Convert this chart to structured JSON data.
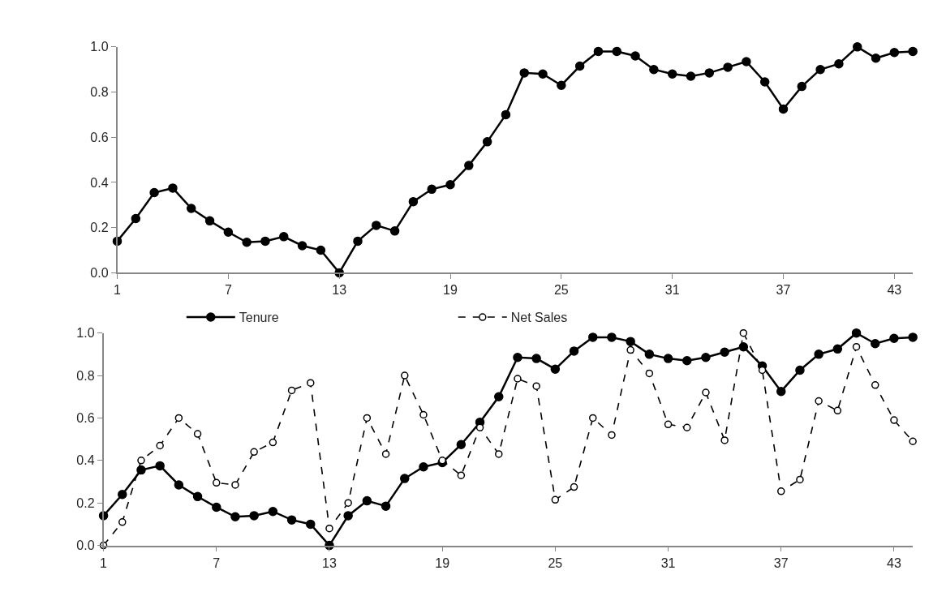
{
  "chart_data": [
    {
      "type": "line",
      "x": [
        1,
        2,
        3,
        4,
        5,
        6,
        7,
        8,
        9,
        10,
        11,
        12,
        13,
        14,
        15,
        16,
        17,
        18,
        19,
        20,
        21,
        22,
        23,
        24,
        25,
        26,
        27,
        28,
        29,
        30,
        31,
        32,
        33,
        34,
        35,
        36,
        37,
        38,
        39,
        40,
        41,
        42,
        43,
        44
      ],
      "xlim": [
        1,
        44
      ],
      "xticks": [
        1,
        7,
        13,
        19,
        25,
        31,
        37,
        43
      ],
      "ylim": [
        0,
        1
      ],
      "yticks": [
        {
          "value": 0,
          "label": "0.0"
        },
        {
          "value": 0.2,
          "label": "0.2"
        },
        {
          "value": 0.4,
          "label": "0.4"
        },
        {
          "value": 0.6,
          "label": "0.6"
        },
        {
          "value": 0.8,
          "label": "0.8"
        },
        {
          "value": 1,
          "label": "1.0"
        }
      ],
      "legend": false,
      "marker": "circle",
      "series": [
        {
          "color": "#000000",
          "line_style": "solid",
          "values": [
            0.14,
            0.24,
            0.355,
            0.375,
            0.285,
            0.23,
            0.18,
            0.135,
            0.14,
            0.16,
            0.12,
            0.1,
            0.0,
            0.14,
            0.21,
            0.185,
            0.315,
            0.37,
            0.39,
            0.475,
            0.58,
            0.7,
            0.885,
            0.88,
            0.83,
            0.915,
            0.98,
            0.98,
            0.96,
            0.9,
            0.88,
            0.87,
            0.885,
            0.91,
            0.935,
            0.845,
            0.725,
            0.825,
            0.9,
            0.925,
            1.0,
            0.95,
            0.975,
            0.98
          ]
        }
      ]
    },
    {
      "type": "line",
      "x": [
        1,
        2,
        3,
        4,
        5,
        6,
        7,
        8,
        9,
        10,
        11,
        12,
        13,
        14,
        15,
        16,
        17,
        18,
        19,
        20,
        21,
        22,
        23,
        24,
        25,
        26,
        27,
        28,
        29,
        30,
        31,
        32,
        33,
        34,
        35,
        36,
        37,
        38,
        39,
        40,
        41,
        42,
        43,
        44
      ],
      "xlim": [
        1,
        44
      ],
      "xticks": [
        1,
        7,
        13,
        19,
        25,
        31,
        37,
        43
      ],
      "ylim": [
        0,
        1
      ],
      "yticks": [
        {
          "value": 0,
          "label": "0.0"
        },
        {
          "value": 0.2,
          "label": "0.2"
        },
        {
          "value": 0.4,
          "label": "0.4"
        },
        {
          "value": 0.6,
          "label": "0.6"
        },
        {
          "value": 0.8,
          "label": "0.8"
        },
        {
          "value": 1,
          "label": "1.0"
        }
      ],
      "legend": "top",
      "marker": "circle",
      "series": [
        {
          "name": "Tenure",
          "color": "#000000",
          "line_style": "solid",
          "values": [
            0.14,
            0.24,
            0.355,
            0.375,
            0.285,
            0.23,
            0.18,
            0.135,
            0.14,
            0.16,
            0.12,
            0.1,
            0.0,
            0.14,
            0.21,
            0.185,
            0.315,
            0.37,
            0.39,
            0.475,
            0.58,
            0.7,
            0.885,
            0.88,
            0.83,
            0.915,
            0.98,
            0.98,
            0.96,
            0.9,
            0.88,
            0.87,
            0.885,
            0.91,
            0.935,
            0.845,
            0.725,
            0.825,
            0.9,
            0.925,
            1.0,
            0.95,
            0.975,
            0.98
          ]
        },
        {
          "name": "Net Sales",
          "color": "#000000",
          "line_style": "dashed",
          "values": [
            0.0,
            0.11,
            0.4,
            0.47,
            0.6,
            0.525,
            0.295,
            0.285,
            0.44,
            0.485,
            0.73,
            0.765,
            0.08,
            0.2,
            0.6,
            0.43,
            0.8,
            0.615,
            0.4,
            0.33,
            0.555,
            0.43,
            0.785,
            0.75,
            0.215,
            0.275,
            0.6,
            0.52,
            0.92,
            0.81,
            0.57,
            0.555,
            0.72,
            0.495,
            1.0,
            0.825,
            0.255,
            0.31,
            0.68,
            0.635,
            0.935,
            0.755,
            0.59,
            0.49
          ]
        }
      ]
    }
  ]
}
